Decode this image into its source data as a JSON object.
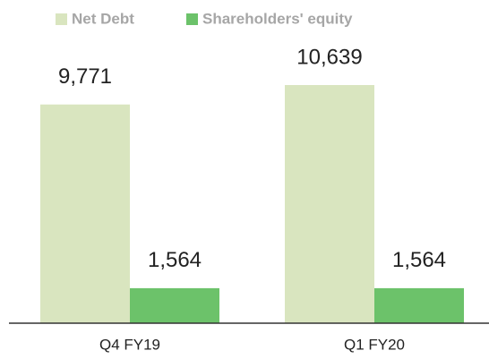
{
  "chart_data": {
    "type": "bar",
    "categories": [
      "Q4 FY19",
      "Q1 FY20"
    ],
    "series": [
      {
        "name": "Net Debt",
        "color": "#d9e5bf",
        "values": [
          9771,
          10639
        ],
        "value_labels": [
          "9,771",
          "10,639"
        ]
      },
      {
        "name": "Shareholders' equity",
        "color": "#6cc26a",
        "values": [
          1564,
          1564
        ],
        "value_labels": [
          "1,564",
          "1,564"
        ]
      }
    ]
  }
}
